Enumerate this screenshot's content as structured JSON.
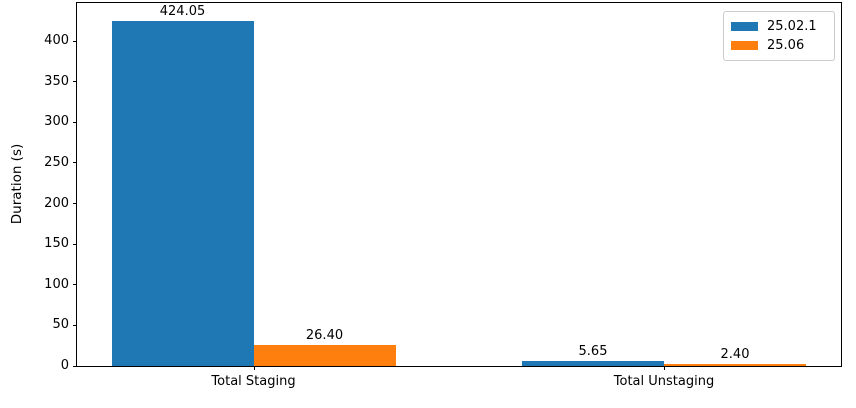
{
  "figure": {
    "background": "#ffffff"
  },
  "chart_data": {
    "type": "bar",
    "categories": [
      "Total Staging",
      "Total Unstaging"
    ],
    "series": [
      {
        "name": "25.02.1",
        "color": "#1f77b4",
        "values": [
          424.05,
          5.65
        ],
        "value_labels": [
          "424.05",
          "5.65"
        ]
      },
      {
        "name": "25.06",
        "color": "#ff7f0e",
        "values": [
          26.4,
          2.4
        ],
        "value_labels": [
          "26.40",
          "2.40"
        ]
      }
    ],
    "title": "",
    "xlabel": "",
    "ylabel": "Duration (s)",
    "yticks": [
      0,
      50,
      100,
      150,
      200,
      250,
      300,
      350,
      400
    ],
    "ylim": [
      0,
      446.8
    ],
    "grid": false,
    "legend_position": "upper right"
  }
}
